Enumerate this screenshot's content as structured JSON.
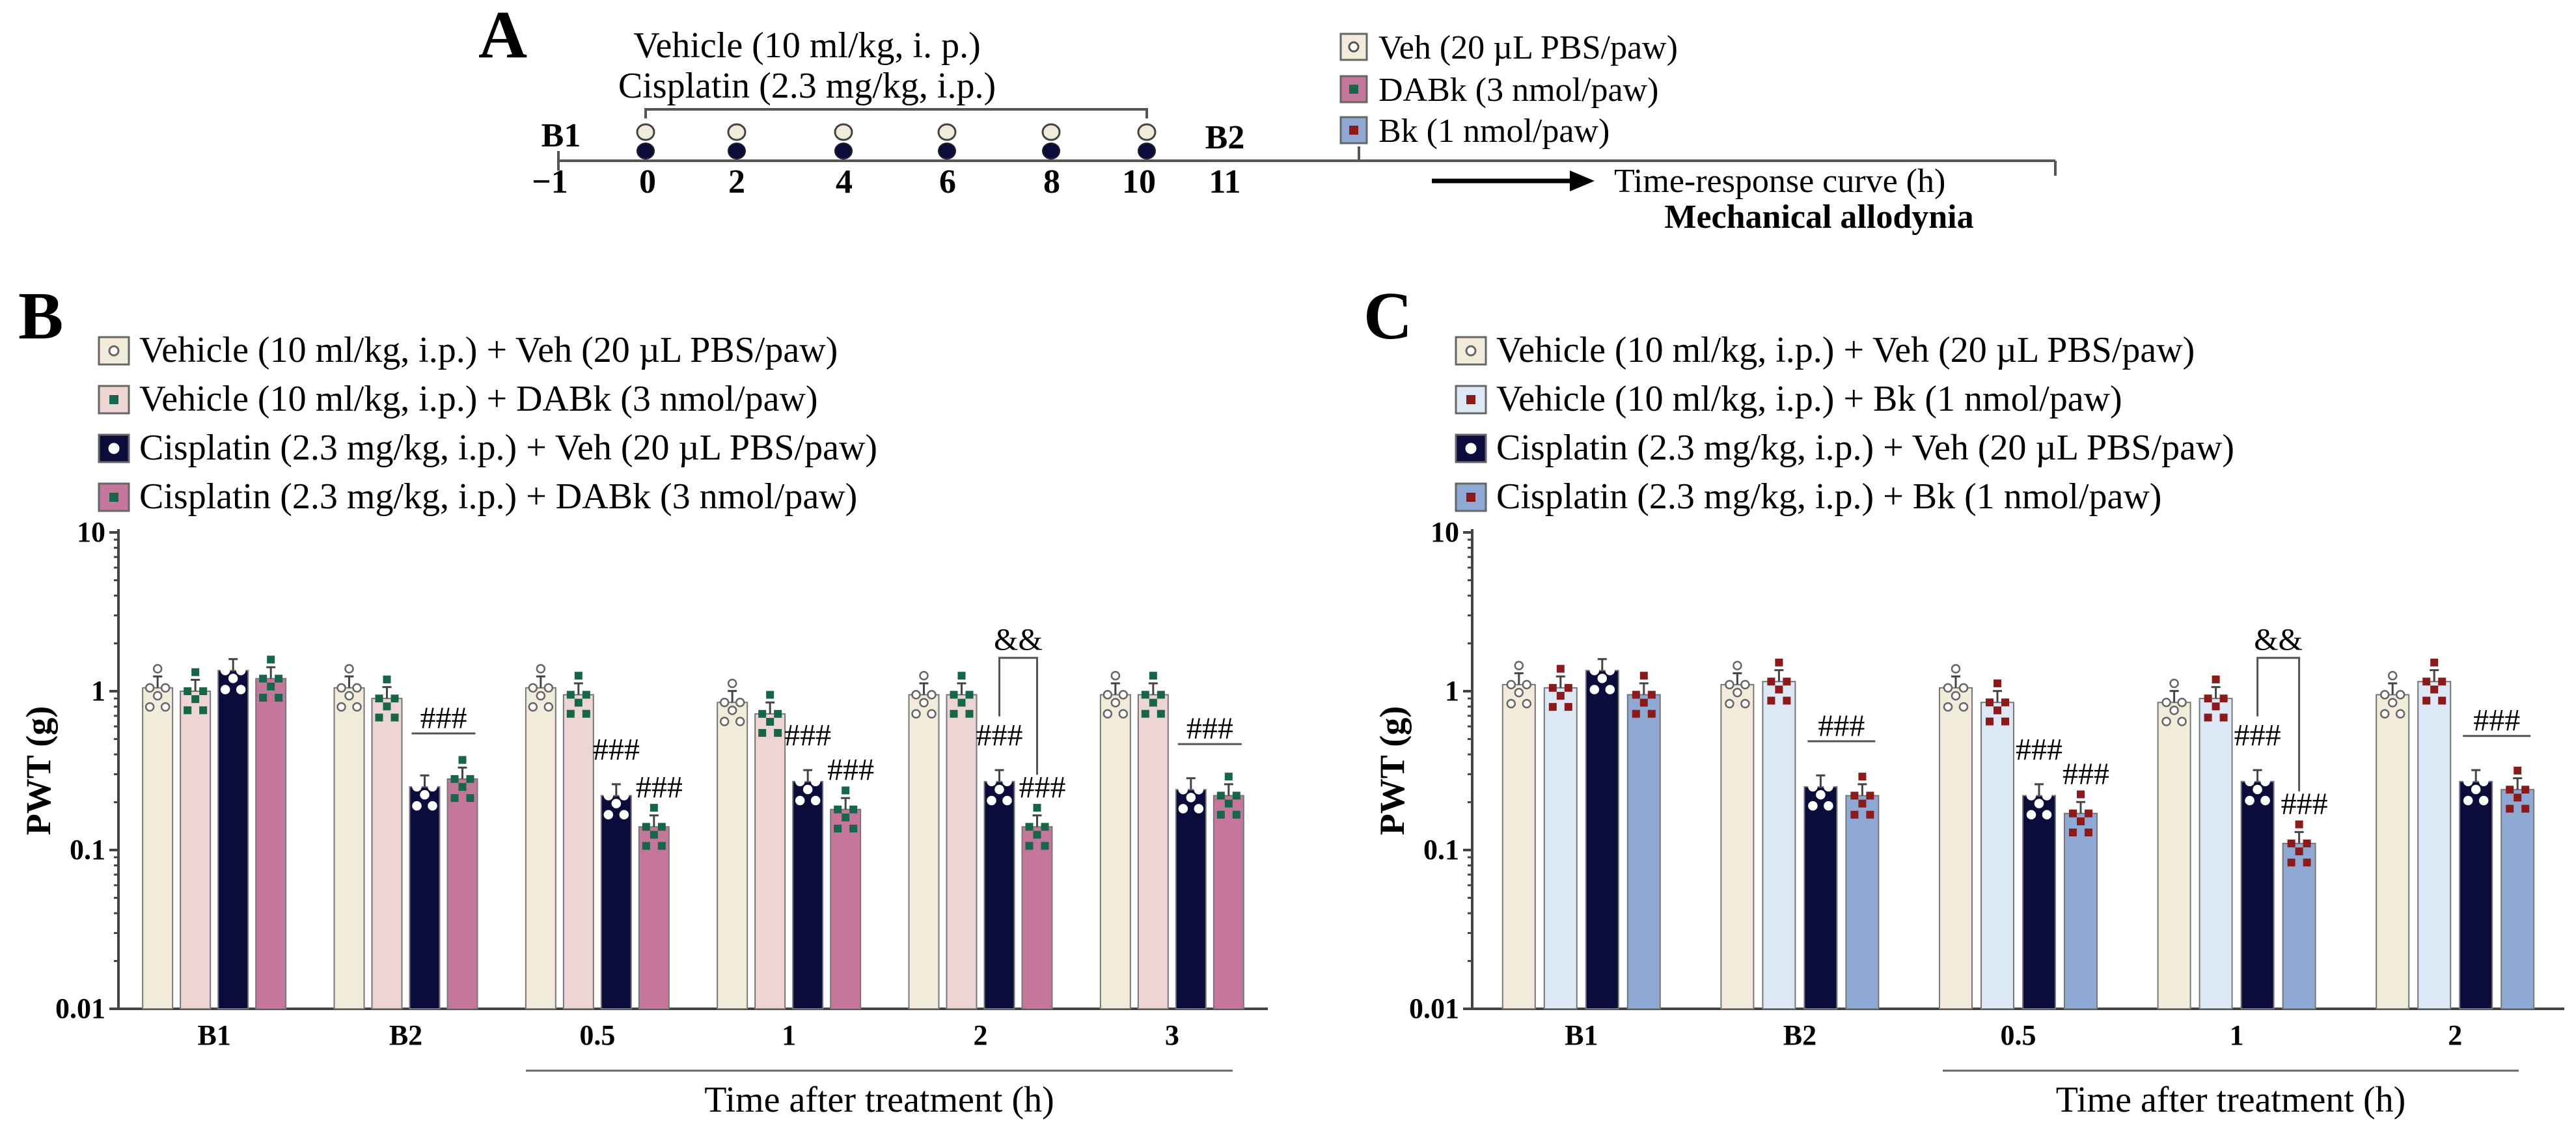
{
  "panel_labels": {
    "a": "A",
    "b": "B",
    "c": "C"
  },
  "protocol": {
    "treatment_line1": "Vehicle (10 ml/kg, i. p.)",
    "treatment_line2": "Cisplatin (2.3 mg/kg, i.p.)",
    "baseline1": "B1",
    "baseline2": "B2",
    "days": [
      "−1",
      "0",
      "2",
      "4",
      "6",
      "8",
      "10",
      "11"
    ],
    "legend": [
      "Veh (20 µL PBS/paw)",
      "DABk (3 nmol/paw)",
      "Bk (1 nmol/paw)"
    ],
    "curve_label": "Time-response curve (h)",
    "outcome_label": "Mechanical allodynia"
  },
  "colors": {
    "veh_beige": "#f1ecd9",
    "dabk_pink": "#ecd5d3",
    "cisplatin_navy": "#0b0c3b",
    "dabk_mauve": "#c4779b",
    "bk_lightblue": "#dde8f7",
    "bk_blue": "#8eaad4",
    "green_marker": "#17664a",
    "red_marker": "#8b1a1a"
  },
  "chart_data": [
    {
      "type": "bar",
      "panel": "B",
      "ylabel": "PWT (g)",
      "xlabel": "Time after treatment (h)",
      "yscale": "log",
      "ylim": [
        0.01,
        10
      ],
      "y_ticks": [
        "0.01",
        "0.1",
        "1",
        "10"
      ],
      "categories": [
        "B1",
        "B2",
        "0.5",
        "1",
        "2",
        "3"
      ],
      "series": [
        {
          "name": "Vehicle (10 ml/kg, i.p.) + Veh (20 µL PBS/paw)",
          "values": [
            1.05,
            1.05,
            1.05,
            0.85,
            0.95,
            0.95
          ]
        },
        {
          "name": "Vehicle (10 ml/kg, i.p.) + DABk (3 nmol/paw)",
          "values": [
            1.0,
            0.9,
            0.95,
            0.72,
            0.95,
            0.95
          ]
        },
        {
          "name": "Cisplatin (2.3 mg/kg, i.p.) + Veh (20 µL PBS/paw)",
          "values": [
            1.35,
            0.25,
            0.22,
            0.27,
            0.27,
            0.24
          ]
        },
        {
          "name": "Cisplatin (2.3 mg/kg, i.p.) + DABk (3 nmol/paw)",
          "values": [
            1.2,
            0.28,
            0.14,
            0.18,
            0.14,
            0.22
          ]
        }
      ],
      "annotations": [
        {
          "category": "B2",
          "text": "###"
        },
        {
          "category": "0.5",
          "text": "###"
        },
        {
          "category": "0.5",
          "text": "###"
        },
        {
          "category": "1",
          "text": "###"
        },
        {
          "category": "1",
          "text": "###"
        },
        {
          "category": "2",
          "text": "###"
        },
        {
          "category": "2",
          "text": "###"
        },
        {
          "category": "2",
          "text": "&&"
        },
        {
          "category": "3",
          "text": "###"
        }
      ]
    },
    {
      "type": "bar",
      "panel": "C",
      "ylabel": "PWT (g)",
      "xlabel": "Time after treatment (h)",
      "yscale": "log",
      "ylim": [
        0.01,
        10
      ],
      "y_ticks": [
        "0.01",
        "0.1",
        "1",
        "10"
      ],
      "categories": [
        "B1",
        "B2",
        "0.5",
        "1",
        "2"
      ],
      "series": [
        {
          "name": "Vehicle (10 ml/kg, i.p.) + Veh (20 µL PBS/paw)",
          "values": [
            1.1,
            1.1,
            1.05,
            0.85,
            0.95
          ]
        },
        {
          "name": "Vehicle (10 ml/kg, i.p.) + Bk (1 nmol/paw)",
          "values": [
            1.05,
            1.15,
            0.85,
            0.9,
            1.15
          ]
        },
        {
          "name": "Cisplatin (2.3 mg/kg, i.p.) + Veh (20 µL PBS/paw)",
          "values": [
            1.35,
            0.25,
            0.22,
            0.27,
            0.27
          ]
        },
        {
          "name": "Cisplatin (2.3 mg/kg, i.p.) + Bk (1 nmol/paw)",
          "values": [
            0.95,
            0.22,
            0.17,
            0.11,
            0.24
          ]
        }
      ],
      "annotations": [
        {
          "category": "B2",
          "text": "###"
        },
        {
          "category": "0.5",
          "text": "###"
        },
        {
          "category": "0.5",
          "text": "###"
        },
        {
          "category": "1",
          "text": "###"
        },
        {
          "category": "1",
          "text": "###"
        },
        {
          "category": "1",
          "text": "&&"
        },
        {
          "category": "2",
          "text": "###"
        }
      ]
    }
  ]
}
